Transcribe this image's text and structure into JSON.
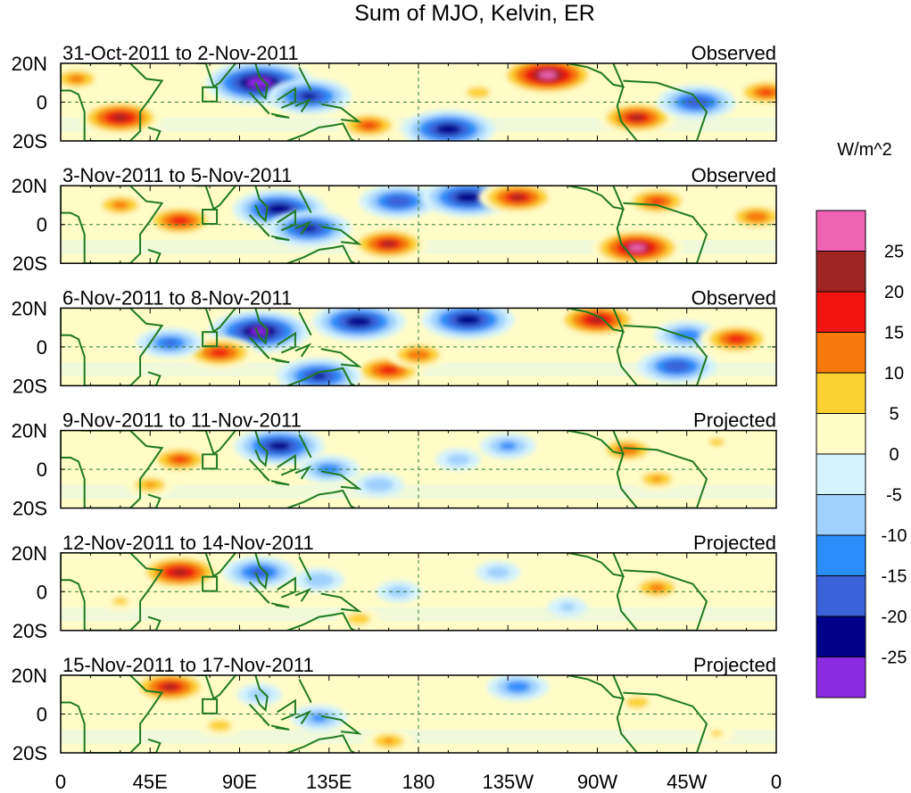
{
  "chart_data": {
    "type": "heatmap",
    "title": "Sum of MJO, Kelvin, ER",
    "units": "W/m^2",
    "x_tick_labels": [
      "0",
      "45E",
      "90E",
      "135E",
      "180",
      "135W",
      "90W",
      "45W",
      "0"
    ],
    "x_tick_lon": [
      0,
      45,
      90,
      135,
      180,
      225,
      270,
      315,
      360
    ],
    "y_tick_labels": [
      "20N",
      "0",
      "20S"
    ],
    "y_tick_lat": [
      20,
      0,
      -20
    ],
    "lat_range": [
      -20,
      20
    ],
    "lon_range": [
      0,
      360
    ],
    "colorbar": {
      "labels": [
        "25",
        "20",
        "15",
        "10",
        "5",
        "0",
        "-5",
        "-10",
        "-15",
        "-20",
        "-25"
      ],
      "colors": [
        "#f062b4",
        "#9e2524",
        "#f0160f",
        "#f57a0a",
        "#fcd233",
        "#fffcc8",
        "#d4f3fd",
        "#a0d1fc",
        "#2b8dfa",
        "#3a61d8",
        "#00008b",
        "#8a2be2"
      ]
    },
    "panels": [
      {
        "date_range": "31-Oct-2011 to 2-Nov-2011",
        "status": "Observed",
        "anomalies": [
          {
            "lon": 100,
            "lat": 10,
            "value": -30
          },
          {
            "lon": 125,
            "lat": 3,
            "value": -22
          },
          {
            "lon": 30,
            "lat": -8,
            "value": 22
          },
          {
            "lon": 155,
            "lat": -12,
            "value": 15
          },
          {
            "lon": 195,
            "lat": -14,
            "value": -25
          },
          {
            "lon": 245,
            "lat": 14,
            "value": 27
          },
          {
            "lon": 290,
            "lat": -8,
            "value": 20
          },
          {
            "lon": 320,
            "lat": 0,
            "value": -20
          },
          {
            "lon": 8,
            "lat": 12,
            "value": 12
          },
          {
            "lon": 355,
            "lat": 5,
            "value": 15
          },
          {
            "lon": 210,
            "lat": 5,
            "value": 8
          }
        ]
      },
      {
        "date_range": "3-Nov-2011 to 5-Nov-2011",
        "status": "Observed",
        "anomalies": [
          {
            "lon": 110,
            "lat": 8,
            "value": -25
          },
          {
            "lon": 125,
            "lat": -2,
            "value": -22
          },
          {
            "lon": 60,
            "lat": 2,
            "value": 18
          },
          {
            "lon": 165,
            "lat": -10,
            "value": 20
          },
          {
            "lon": 170,
            "lat": 12,
            "value": -20
          },
          {
            "lon": 205,
            "lat": 14,
            "value": -25
          },
          {
            "lon": 230,
            "lat": 14,
            "value": 20
          },
          {
            "lon": 290,
            "lat": -12,
            "value": 25
          },
          {
            "lon": 300,
            "lat": 12,
            "value": 16
          },
          {
            "lon": 350,
            "lat": 4,
            "value": 14
          },
          {
            "lon": 30,
            "lat": 10,
            "value": 12
          }
        ]
      },
      {
        "date_range": "6-Nov-2011 to 8-Nov-2011",
        "status": "Observed",
        "anomalies": [
          {
            "lon": 100,
            "lat": 8,
            "value": -28
          },
          {
            "lon": 150,
            "lat": 13,
            "value": -25
          },
          {
            "lon": 205,
            "lat": 14,
            "value": -25
          },
          {
            "lon": 165,
            "lat": -12,
            "value": 18
          },
          {
            "lon": 80,
            "lat": -3,
            "value": 18
          },
          {
            "lon": 130,
            "lat": -15,
            "value": -22
          },
          {
            "lon": 180,
            "lat": -4,
            "value": 14
          },
          {
            "lon": 270,
            "lat": 14,
            "value": 22
          },
          {
            "lon": 315,
            "lat": 6,
            "value": -15
          },
          {
            "lon": 340,
            "lat": 4,
            "value": 18
          },
          {
            "lon": 55,
            "lat": 2,
            "value": -16
          },
          {
            "lon": 310,
            "lat": -10,
            "value": -20
          }
        ]
      },
      {
        "date_range": "9-Nov-2011 to 11-Nov-2011",
        "status": "Projected",
        "anomalies": [
          {
            "lon": 110,
            "lat": 12,
            "value": -24
          },
          {
            "lon": 60,
            "lat": 5,
            "value": 15
          },
          {
            "lon": 135,
            "lat": 0,
            "value": -14
          },
          {
            "lon": 160,
            "lat": -8,
            "value": -10
          },
          {
            "lon": 225,
            "lat": 12,
            "value": -12
          },
          {
            "lon": 285,
            "lat": 10,
            "value": 14
          },
          {
            "lon": 300,
            "lat": -5,
            "value": 10
          },
          {
            "lon": 45,
            "lat": -8,
            "value": 10
          },
          {
            "lon": 200,
            "lat": 5,
            "value": -8
          },
          {
            "lon": 330,
            "lat": 14,
            "value": 6
          }
        ]
      },
      {
        "date_range": "12-Nov-2011 to 14-Nov-2011",
        "status": "Projected",
        "anomalies": [
          {
            "lon": 60,
            "lat": 10,
            "value": 22
          },
          {
            "lon": 100,
            "lat": 10,
            "value": -18
          },
          {
            "lon": 130,
            "lat": 6,
            "value": -10
          },
          {
            "lon": 170,
            "lat": 0,
            "value": -8
          },
          {
            "lon": 150,
            "lat": -14,
            "value": 8
          },
          {
            "lon": 220,
            "lat": 10,
            "value": -8
          },
          {
            "lon": 300,
            "lat": 2,
            "value": 12
          },
          {
            "lon": 30,
            "lat": -5,
            "value": 6
          },
          {
            "lon": 255,
            "lat": -8,
            "value": -6
          }
        ]
      },
      {
        "date_range": "15-Nov-2011 to 17-Nov-2011",
        "status": "Projected",
        "anomalies": [
          {
            "lon": 55,
            "lat": 14,
            "value": 20
          },
          {
            "lon": 130,
            "lat": -2,
            "value": -12
          },
          {
            "lon": 165,
            "lat": -14,
            "value": 10
          },
          {
            "lon": 230,
            "lat": 14,
            "value": -14
          },
          {
            "lon": 80,
            "lat": -6,
            "value": 8
          },
          {
            "lon": 290,
            "lat": 6,
            "value": 8
          },
          {
            "lon": 100,
            "lat": 10,
            "value": -8
          },
          {
            "lon": 330,
            "lat": -10,
            "value": 5
          }
        ]
      }
    ]
  }
}
